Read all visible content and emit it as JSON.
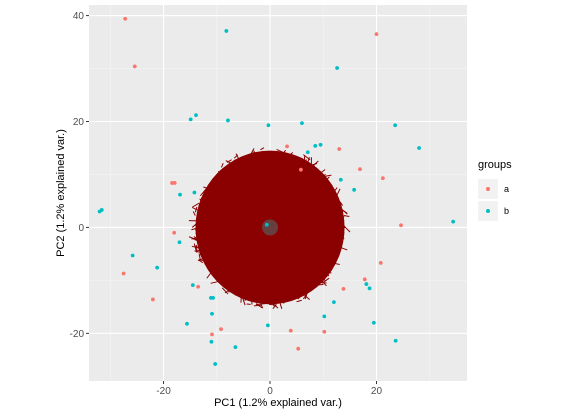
{
  "chart_data": {
    "type": "scatter",
    "xlabel": "PC1 (1.2% explained var.)",
    "ylabel": "PC2 (1.2% explained var.)",
    "xlim": [
      -34,
      37
    ],
    "ylim": [
      -29,
      42
    ],
    "x_ticks": [
      -20,
      0,
      20
    ],
    "y_ticks": [
      -20,
      0,
      20,
      40
    ],
    "x_tick_labels": [
      "-20",
      "0",
      "20"
    ],
    "y_tick_labels": [
      "-20",
      "0",
      "20",
      "40"
    ],
    "grid": true,
    "background": "#ebebeb",
    "legend": {
      "title": "groups",
      "position": "right",
      "entries": [
        {
          "label": "a",
          "color": "#f8766d"
        },
        {
          "label": "b",
          "color": "#00bfc4"
        }
      ]
    },
    "variable_loadings_overlay": {
      "color": "#8b0000",
      "center": [
        0,
        0
      ],
      "extent_x": [
        -14,
        14
      ],
      "extent_y": [
        -14,
        15
      ]
    },
    "series": [
      {
        "name": "a",
        "color": "#f8766d",
        "points": [
          [
            -27.2,
            39.4
          ],
          [
            -25.4,
            30.4
          ],
          [
            20.0,
            36.5
          ],
          [
            -18.4,
            8.4
          ],
          [
            -17.9,
            8.4
          ],
          [
            -18.0,
            -1.0
          ],
          [
            -22.0,
            -13.6
          ],
          [
            -27.5,
            -8.7
          ],
          [
            -10.9,
            -20.2
          ],
          [
            -9.2,
            -19.2
          ],
          [
            3.9,
            -19.5
          ],
          [
            5.3,
            -22.9
          ],
          [
            10.2,
            -19.7
          ],
          [
            24.6,
            0.4
          ],
          [
            20.8,
            -6.7
          ],
          [
            13.0,
            14.8
          ],
          [
            16.9,
            11.0
          ],
          [
            21.2,
            9.3
          ],
          [
            13.8,
            -11.6
          ],
          [
            17.8,
            -9.8
          ],
          [
            3.2,
            15.3
          ],
          [
            -13.5,
            -11.2
          ],
          [
            5.8,
            10.9
          ]
        ]
      },
      {
        "name": "b",
        "color": "#00bfc4",
        "points": [
          [
            -32.0,
            3.0
          ],
          [
            -31.6,
            3.3
          ],
          [
            -8.2,
            37.1
          ],
          [
            12.6,
            30.1
          ],
          [
            -13.9,
            21.2
          ],
          [
            -14.9,
            20.4
          ],
          [
            -7.9,
            20.2
          ],
          [
            -0.3,
            19.3
          ],
          [
            6.0,
            19.7
          ],
          [
            23.5,
            19.3
          ],
          [
            28.0,
            15.0
          ],
          [
            8.5,
            15.4
          ],
          [
            7.1,
            14.2
          ],
          [
            -14.2,
            6.6
          ],
          [
            -16.9,
            6.2
          ],
          [
            15.8,
            7.1
          ],
          [
            34.4,
            1.1
          ],
          [
            -0.6,
            0.5
          ],
          [
            -25.8,
            -5.3
          ],
          [
            -21.2,
            -7.6
          ],
          [
            -17.0,
            -2.8
          ],
          [
            -14.5,
            -10.9
          ],
          [
            -15.6,
            -18.2
          ],
          [
            -11.1,
            -13.3
          ],
          [
            -10.7,
            -13.3
          ],
          [
            -10.9,
            -16.3
          ],
          [
            -0.4,
            -18.5
          ],
          [
            -10.3,
            -25.8
          ],
          [
            -6.5,
            -22.6
          ],
          [
            12.0,
            -14.1
          ],
          [
            18.1,
            -10.7
          ],
          [
            18.7,
            -11.5
          ],
          [
            19.5,
            -18.0
          ],
          [
            23.6,
            -21.4
          ],
          [
            -11.0,
            -21.6
          ],
          [
            10.2,
            -16.8
          ],
          [
            13.3,
            9.0
          ],
          [
            9.5,
            15.6
          ]
        ]
      }
    ]
  }
}
